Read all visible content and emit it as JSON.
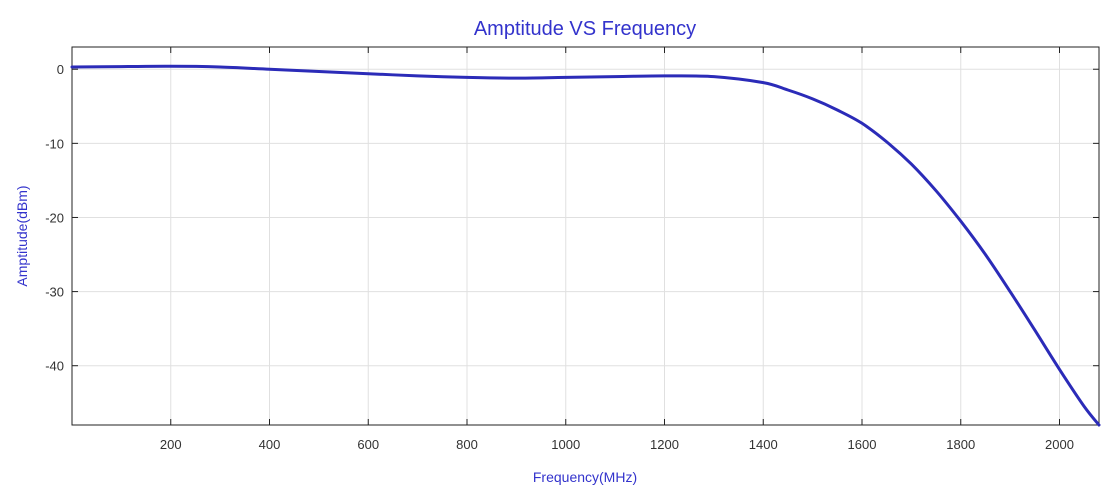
{
  "chart_data": {
    "type": "line",
    "title": "Amptitude VS Frequency",
    "xlabel": "Frequency(MHz)",
    "ylabel": "Amptitude(dBm)",
    "xlim": [
      0,
      2080
    ],
    "ylim": [
      -48,
      3
    ],
    "xticks": [
      200,
      400,
      600,
      800,
      1000,
      1200,
      1400,
      1600,
      1800,
      2000
    ],
    "yticks": [
      0,
      -10,
      -20,
      -30,
      -40
    ],
    "grid": true,
    "colors": {
      "line": "#2b2bb8",
      "text": "#3333cc",
      "grid": "#e0e0e0",
      "axes": "#222222"
    },
    "series": [
      {
        "x": [
          0,
          100,
          200,
          300,
          400,
          500,
          600,
          700,
          800,
          900,
          1000,
          1100,
          1200,
          1300,
          1400,
          1450,
          1500,
          1550,
          1600,
          1650,
          1700,
          1750,
          1800,
          1850,
          1900,
          1950,
          2000,
          2050,
          2080
        ],
        "y": [
          0.3,
          0.35,
          0.4,
          0.3,
          0.0,
          -0.3,
          -0.6,
          -0.9,
          -1.1,
          -1.2,
          -1.1,
          -1.0,
          -0.9,
          -1.0,
          -1.8,
          -2.8,
          -4.0,
          -5.5,
          -7.3,
          -9.8,
          -12.8,
          -16.4,
          -20.5,
          -25.0,
          -30.0,
          -35.2,
          -40.5,
          -45.5,
          -48.0
        ]
      }
    ]
  }
}
